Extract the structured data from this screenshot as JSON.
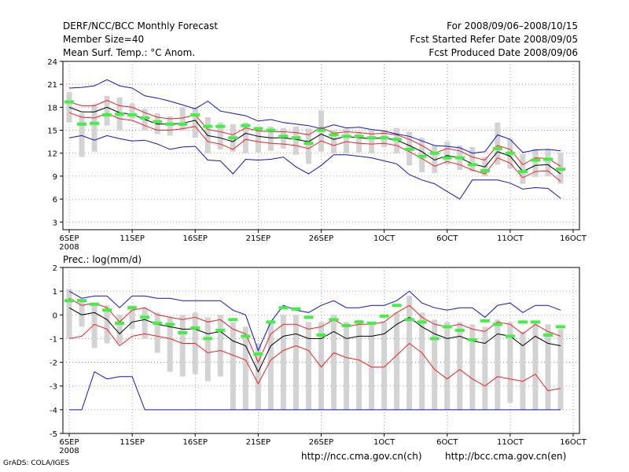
{
  "header": {
    "title": "DERF/NCC/BCC Monthly Forecast",
    "member_size": "Member Size=40",
    "variable": "Mean Surf. Temp.: °C Anom.",
    "period": "For 2008/09/06–2008/10/15",
    "refer_date": "Fcst Started Refer Date 2008/09/05",
    "produced_date": "Fcst Produced Date 2008/09/06"
  },
  "footer": {
    "grads": "GrADS: COLA/IGES",
    "url_ncc": "http://ncc.cma.gov.cn(ch)",
    "url_bcc": "http://bcc.cma.gov.cn(en)"
  },
  "colors": {
    "box": "#d3d3d3",
    "median": "#44ee44",
    "mean": "#000000",
    "sd": "#ee2222",
    "extreme": "#1111cc",
    "grid": "#888888"
  },
  "chart_data": [
    {
      "type": "line",
      "title": "Mean Surf. Temp.: °C Anom.",
      "ylim": [
        2,
        24
      ],
      "yticks": [
        3,
        6,
        9,
        12,
        15,
        18,
        21,
        24
      ],
      "xticks": [
        {
          "day": 0,
          "label": "6SEP",
          "sublabel": "2008"
        },
        {
          "day": 5,
          "label": "11SEP"
        },
        {
          "day": 10,
          "label": "16SEP"
        },
        {
          "day": 15,
          "label": "21SEP"
        },
        {
          "day": 20,
          "label": "26SEP"
        },
        {
          "day": 25,
          "label": "1OCT"
        },
        {
          "day": 30,
          "label": "6OCT"
        },
        {
          "day": 35,
          "label": "11OCT"
        },
        {
          "day": 40,
          "label": "16OCT"
        }
      ],
      "series": [
        {
          "name": "max",
          "color": "#1111cc",
          "values": [
            20.5,
            20.6,
            20.8,
            21.6,
            20.8,
            20.5,
            19.5,
            19.2,
            18.8,
            18.3,
            17.8,
            18.8,
            17.5,
            17.2,
            16.9,
            16.2,
            16.4,
            16.0,
            15.8,
            15.6,
            15.2,
            15.7,
            15.3,
            15.4,
            15.1,
            14.9,
            14.5,
            14.2,
            13.6,
            13.0,
            12.9,
            12.7,
            12.0,
            12.2,
            14.4,
            13.8,
            12.1,
            12.4,
            12.5,
            12.3
          ]
        },
        {
          "name": "mean_plus_sd",
          "color": "#ee2222",
          "values": [
            18.7,
            18.2,
            18.2,
            18.9,
            18.2,
            18.0,
            17.3,
            16.7,
            16.5,
            16.6,
            17.0,
            15.1,
            14.8,
            14.4,
            15.3,
            14.9,
            14.8,
            14.8,
            14.7,
            14.4,
            15.4,
            14.6,
            14.8,
            14.7,
            14.5,
            14.6,
            14.4,
            13.8,
            13.0,
            12.0,
            12.6,
            12.3,
            11.5,
            11.1,
            13.0,
            12.5,
            10.5,
            11.4,
            11.3,
            10.3
          ]
        },
        {
          "name": "mean",
          "color": "#000000",
          "values": [
            18.0,
            17.4,
            17.4,
            18.0,
            17.3,
            17.1,
            16.4,
            15.8,
            15.8,
            15.9,
            16.3,
            14.3,
            14.0,
            13.5,
            14.6,
            14.2,
            14.0,
            14.0,
            13.8,
            13.5,
            14.5,
            13.8,
            14.2,
            14.0,
            13.9,
            14.0,
            13.7,
            13.0,
            12.2,
            11.1,
            11.7,
            11.4,
            10.6,
            10.2,
            12.2,
            11.6,
            9.6,
            10.4,
            10.5,
            9.3
          ]
        },
        {
          "name": "mean_minus_sd",
          "color": "#ee2222",
          "values": [
            17.3,
            16.7,
            16.6,
            17.2,
            16.5,
            16.3,
            15.6,
            15.0,
            15.0,
            15.2,
            15.5,
            13.5,
            13.2,
            12.5,
            13.8,
            13.5,
            13.3,
            13.2,
            13.0,
            12.6,
            13.6,
            13.0,
            13.5,
            13.3,
            13.2,
            13.3,
            13.0,
            12.2,
            11.3,
            10.3,
            10.9,
            10.5,
            9.8,
            9.3,
            11.4,
            10.7,
            8.8,
            9.6,
            9.7,
            8.3
          ]
        },
        {
          "name": "min",
          "color": "#1111cc",
          "values": [
            14.0,
            14.3,
            13.7,
            14.3,
            13.9,
            13.6,
            13.7,
            13.2,
            12.5,
            12.8,
            12.9,
            11.1,
            11.0,
            9.3,
            11.2,
            11.1,
            11.2,
            11.5,
            10.2,
            9.3,
            10.4,
            11.8,
            11.8,
            11.6,
            11.4,
            11.0,
            10.6,
            9.2,
            8.5,
            8.0,
            7.0,
            6.0,
            8.5,
            8.5,
            8.5,
            8.1,
            7.3,
            7.5,
            7.4,
            6.1
          ]
        }
      ],
      "boxes": {
        "low": [
          16.0,
          11.5,
          12.2,
          15.6,
          15.0,
          16.5,
          15.0,
          14.5,
          14.3,
          15.0,
          14.0,
          12.0,
          12.5,
          12.2,
          12.0,
          12.1,
          12.3,
          12.6,
          11.8,
          10.6,
          12.2,
          12.0,
          12.0,
          12.1,
          12.0,
          12.8,
          12.0,
          10.4,
          9.5,
          9.4,
          10.5,
          9.8,
          9.6,
          9.0,
          10.5,
          10.0,
          8.0,
          8.9,
          9.0,
          8.0
        ],
        "high": [
          20.0,
          17.2,
          18.4,
          19.5,
          19.3,
          18.5,
          17.8,
          17.2,
          16.8,
          18.0,
          18.0,
          16.7,
          16.0,
          15.8,
          16.0,
          15.5,
          15.5,
          15.3,
          15.5,
          15.2,
          17.6,
          15.0,
          15.2,
          14.8,
          15.0,
          15.0,
          15.3,
          14.8,
          14.0,
          13.0,
          13.5,
          13.0,
          12.8,
          11.5,
          16.0,
          13.9,
          11.9,
          12.6,
          12.5,
          12.1
        ]
      },
      "median": [
        18.7,
        15.8,
        15.9,
        17.0,
        17.1,
        17.0,
        16.6,
        16.1,
        15.8,
        15.8,
        17.0,
        15.5,
        15.5,
        14.0,
        15.6,
        15.2,
        15.0,
        14.2,
        14.0,
        13.3,
        15.0,
        14.4,
        14.2,
        14.2,
        14.0,
        14.0,
        13.8,
        12.5,
        11.6,
        12.0,
        11.4,
        11.4,
        10.5,
        9.7,
        12.6,
        12.0,
        9.6,
        11.1,
        11.2,
        9.9
      ]
    },
    {
      "type": "line",
      "title": "Prec.: log(mm/d)",
      "ylim": [
        -5,
        2
      ],
      "yticks": [
        -5,
        -4,
        -3,
        -2,
        -1,
        0,
        1,
        2
      ],
      "xticks": [
        {
          "day": 0,
          "label": "6SEP",
          "sublabel": "2008"
        },
        {
          "day": 5,
          "label": "11SEP"
        },
        {
          "day": 10,
          "label": "16SEP"
        },
        {
          "day": 15,
          "label": "21SEP"
        },
        {
          "day": 20,
          "label": "26SEP"
        },
        {
          "day": 25,
          "label": "1OCT"
        },
        {
          "day": 30,
          "label": "6OCT"
        },
        {
          "day": 35,
          "label": "11OCT"
        },
        {
          "day": 40,
          "label": "16OCT"
        }
      ],
      "series": [
        {
          "name": "max",
          "color": "#1111cc",
          "values": [
            1.0,
            0.7,
            0.8,
            0.8,
            0.3,
            0.8,
            0.8,
            0.7,
            0.7,
            0.6,
            0.6,
            0.6,
            0.6,
            0.2,
            0.0,
            -1.5,
            -0.3,
            0.4,
            0.2,
            0.1,
            0.4,
            0.6,
            0.3,
            0.3,
            0.4,
            0.4,
            0.6,
            1.0,
            0.5,
            0.3,
            0.2,
            0.3,
            0.3,
            -0.1,
            0.4,
            0.5,
            0.1,
            0.4,
            0.4,
            0.2
          ]
        },
        {
          "name": "mean_plus_sd",
          "color": "#ee2222",
          "values": [
            0.7,
            0.4,
            0.5,
            0.3,
            -0.3,
            0.2,
            0.3,
            0.0,
            -0.1,
            -0.2,
            -0.1,
            -0.3,
            -0.2,
            -0.6,
            -0.8,
            -2.0,
            -0.8,
            -0.4,
            -0.4,
            -0.6,
            -0.5,
            -0.2,
            -0.5,
            -0.4,
            -0.4,
            -0.3,
            0.1,
            0.4,
            -0.1,
            -0.4,
            -0.5,
            -0.4,
            -0.6,
            -0.7,
            -0.3,
            -0.4,
            -0.8,
            -0.4,
            -0.7,
            -0.9
          ]
        },
        {
          "name": "mean",
          "color": "#000000",
          "values": [
            0.3,
            0.0,
            0.1,
            -0.2,
            -0.8,
            -0.3,
            -0.2,
            -0.4,
            -0.5,
            -0.6,
            -0.6,
            -0.8,
            -0.7,
            -1.1,
            -1.3,
            -2.4,
            -1.3,
            -0.9,
            -0.8,
            -1.0,
            -1.0,
            -0.7,
            -1.0,
            -0.9,
            -0.9,
            -0.8,
            -0.4,
            -0.1,
            -0.5,
            -0.8,
            -1.0,
            -0.9,
            -1.1,
            -1.2,
            -0.8,
            -0.9,
            -1.3,
            -0.9,
            -1.2,
            -1.3
          ]
        },
        {
          "name": "mean_minus_sd",
          "color": "#ee2222",
          "values": [
            -1.0,
            -0.9,
            -0.4,
            -0.6,
            -1.3,
            -0.9,
            -0.8,
            -0.9,
            -1.0,
            -1.2,
            -1.2,
            -1.6,
            -1.5,
            -1.7,
            -1.9,
            -2.9,
            -1.9,
            -1.5,
            -1.3,
            -1.5,
            -2.2,
            -1.6,
            -1.8,
            -1.9,
            -2.2,
            -2.2,
            -1.7,
            -1.2,
            -1.6,
            -2.3,
            -2.7,
            -2.3,
            -2.7,
            -3.0,
            -2.6,
            -2.7,
            -2.8,
            -2.5,
            -3.2,
            -3.1
          ]
        },
        {
          "name": "min",
          "color": "#1111cc",
          "values": [
            -4.0,
            -4.0,
            -2.4,
            -2.7,
            -2.6,
            -2.6,
            -4.0,
            -4.0,
            -4.0,
            -4.0,
            -4.0,
            -4.0,
            -4.0,
            -4.0,
            -4.0,
            -4.0,
            -4.0,
            -4.0,
            -4.0,
            -4.0,
            -4.0,
            -4.0,
            -4.0,
            -4.0,
            -4.0,
            -4.0,
            -4.0,
            -4.0,
            -4.0,
            -4.0,
            -4.0,
            -4.0,
            -4.0,
            -4.0,
            -4.0,
            -4.0,
            -4.0,
            -4.0,
            -4.0,
            -4.0
          ]
        }
      ],
      "boxes": {
        "low": [
          -1.0,
          -0.5,
          -1.4,
          -1.2,
          -1.2,
          -0.6,
          -1.0,
          -1.6,
          -2.4,
          -2.6,
          -2.5,
          -2.8,
          -2.6,
          -4.0,
          -4.0,
          -4.0,
          -4.0,
          -4.0,
          -4.0,
          -4.0,
          -4.0,
          -4.0,
          -4.0,
          -4.0,
          -4.0,
          -4.0,
          -4.0,
          -4.0,
          -4.0,
          -4.0,
          -4.0,
          -4.0,
          -4.0,
          -4.0,
          -4.0,
          -3.7,
          -4.0,
          -4.0,
          -4.0,
          -4.0
        ],
        "high": [
          1.1,
          0.6,
          0.5,
          0.4,
          0.0,
          0.4,
          0.3,
          0.1,
          -0.1,
          0.0,
          0.1,
          -0.1,
          0.0,
          -0.3,
          -0.5,
          -1.2,
          -0.3,
          0.0,
          0.0,
          -0.3,
          -0.3,
          0.0,
          -0.3,
          -0.2,
          -0.3,
          -0.3,
          0.1,
          0.8,
          0.1,
          -0.2,
          -0.3,
          -0.3,
          -0.4,
          -0.5,
          -0.2,
          -0.3,
          -0.7,
          -0.3,
          -0.4,
          -0.6
        ]
      },
      "median": [
        0.6,
        0.6,
        0.45,
        0.2,
        -0.35,
        0.3,
        -0.1,
        -0.35,
        -0.4,
        -0.75,
        -0.55,
        -1.0,
        -0.65,
        -0.2,
        -0.9,
        -1.65,
        -0.3,
        0.3,
        0.25,
        -0.1,
        -0.85,
        -0.2,
        -0.45,
        -0.3,
        -0.35,
        -0.05,
        0.4,
        -0.2,
        -0.3,
        -1.0,
        -0.5,
        -0.65,
        -1.05,
        -0.25,
        -0.4,
        -0.9,
        -0.3,
        -0.3,
        -0.85,
        -0.5
      ]
    }
  ]
}
